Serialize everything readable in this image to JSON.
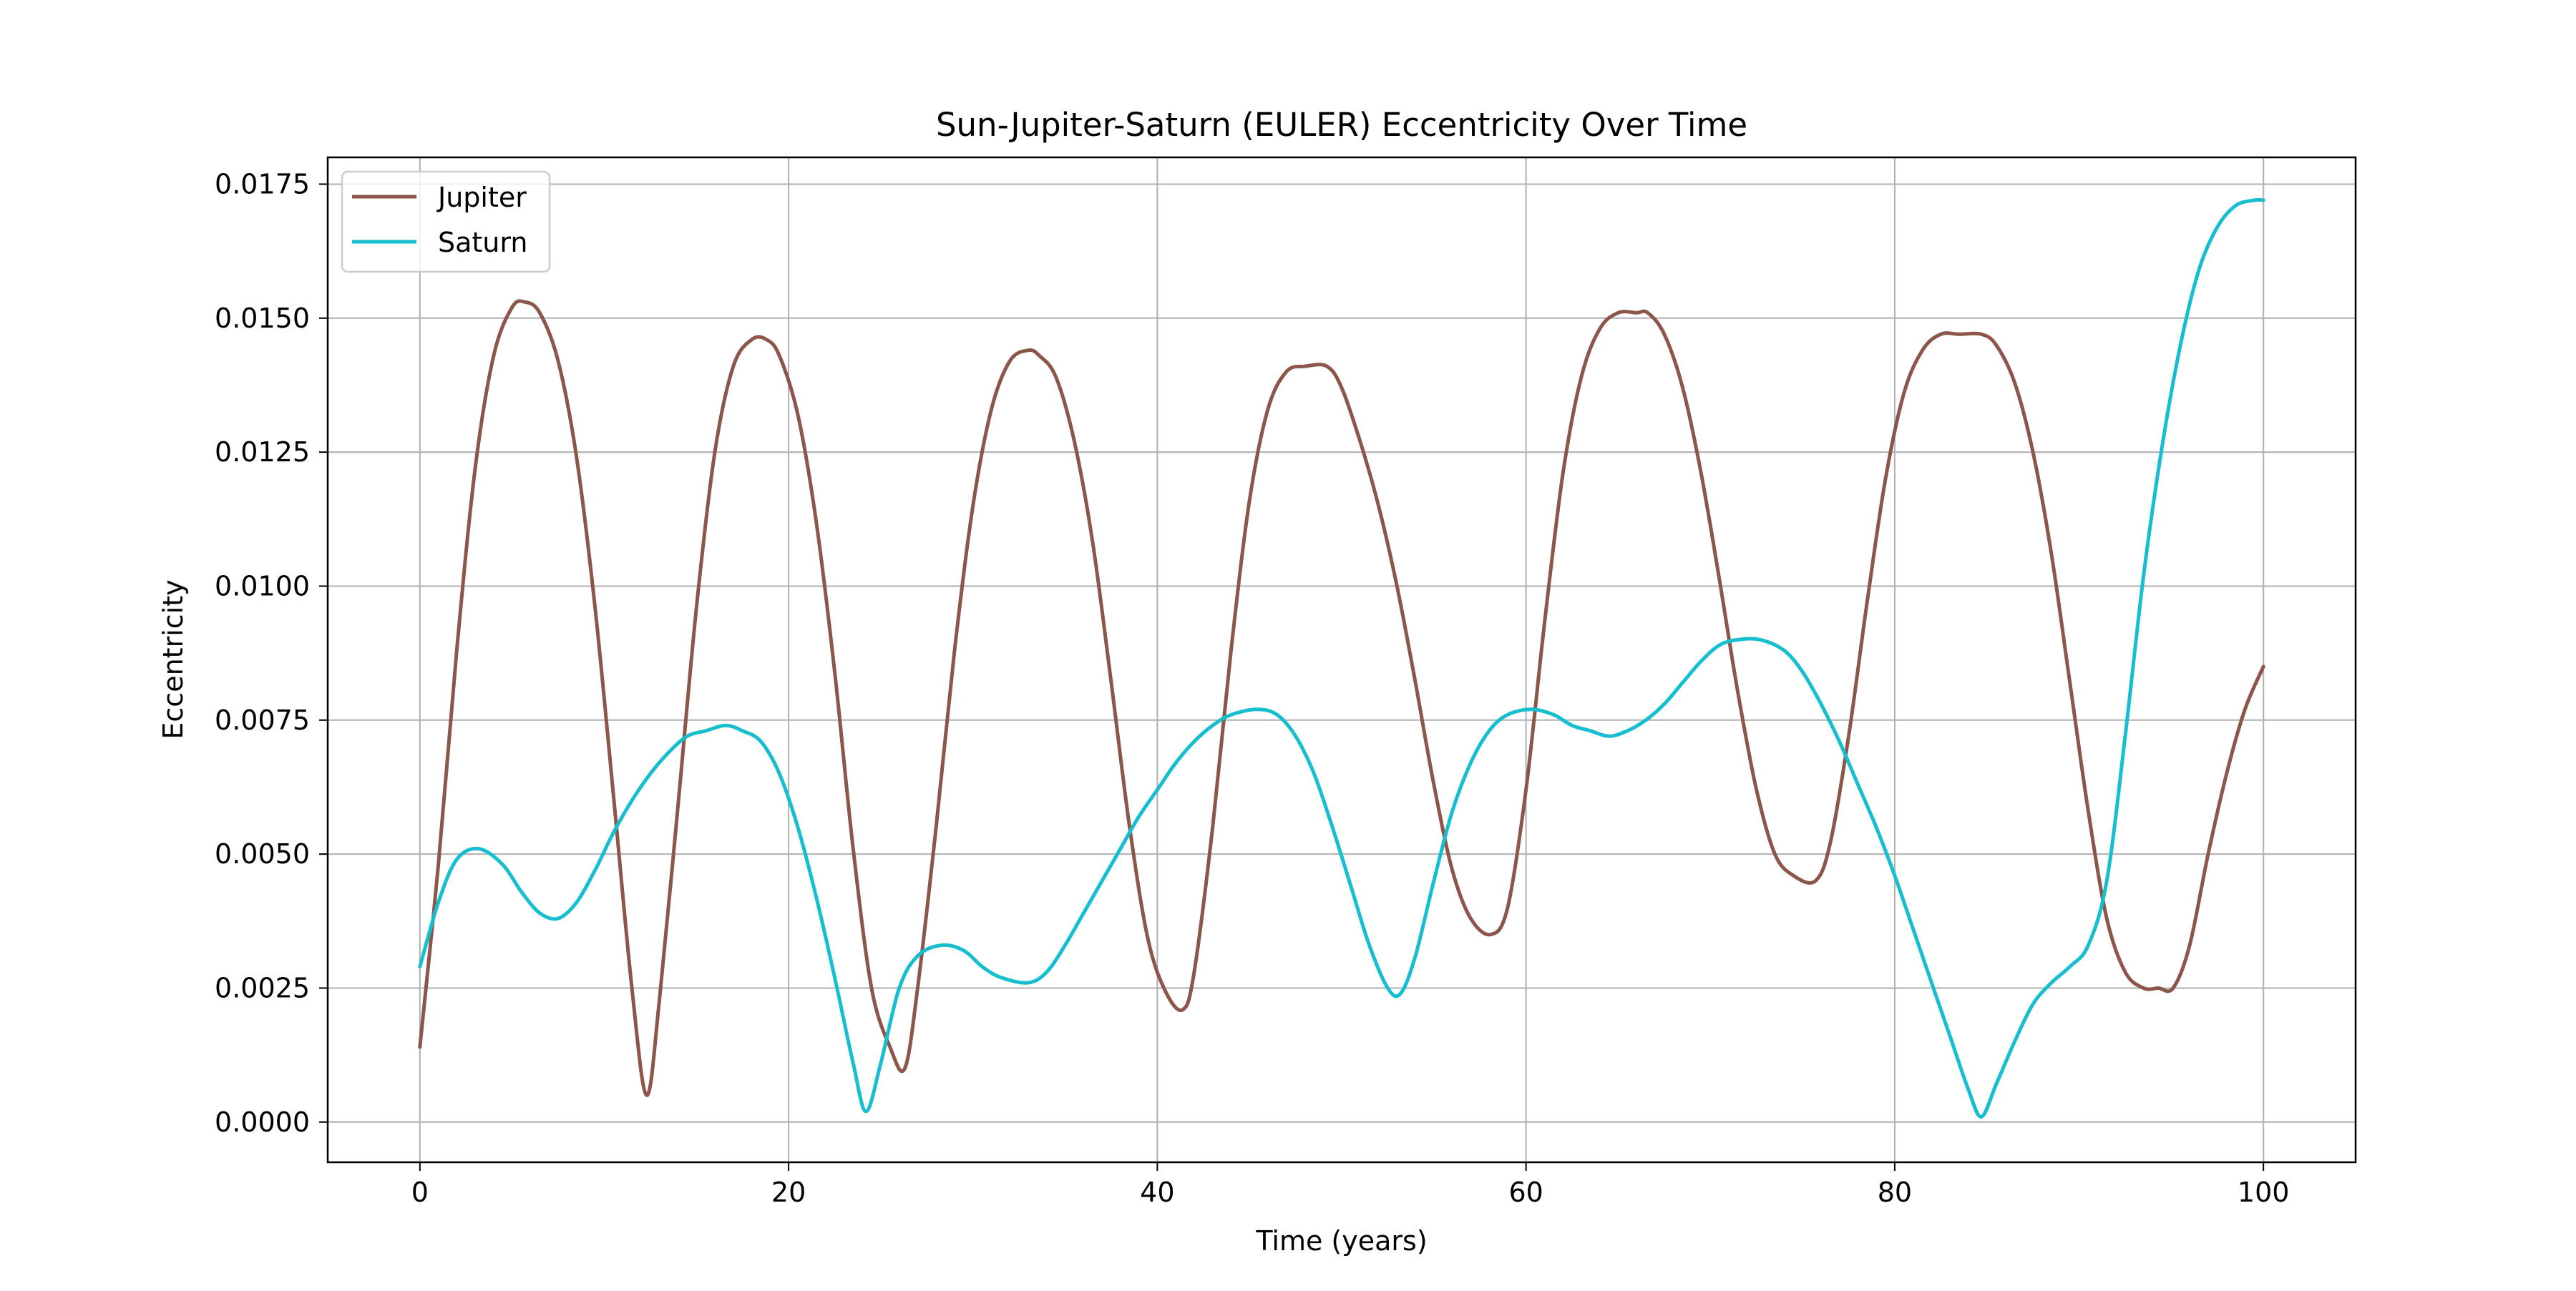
{
  "chart_data": {
    "type": "line",
    "title": "Sun-Jupiter-Saturn (EULER) Eccentricity Over Time",
    "xlabel": "Time (years)",
    "ylabel": "Eccentricity",
    "xlim": [
      -5,
      105
    ],
    "ylim": [
      -0.00075,
      0.018
    ],
    "xticks": [
      0,
      20,
      40,
      60,
      80,
      100
    ],
    "xtick_labels": [
      "0",
      "20",
      "40",
      "60",
      "80",
      "100"
    ],
    "yticks": [
      0.0,
      0.0025,
      0.005,
      0.0075,
      0.01,
      0.0125,
      0.015,
      0.0175
    ],
    "ytick_labels": [
      "0.0000",
      "0.0025",
      "0.0050",
      "0.0075",
      "0.0100",
      "0.0125",
      "0.0150",
      "0.0175"
    ],
    "grid": true,
    "legend_position": "top-left",
    "series": [
      {
        "name": "Jupiter",
        "color": "#8c564b",
        "x": [
          0,
          1,
          2,
          3,
          4,
          5,
          5.7,
          6.5,
          7.5,
          8.5,
          9.5,
          10.5,
          11.5,
          12.3,
          13,
          14,
          15,
          16,
          17,
          18,
          18.8,
          19.5,
          20.5,
          21.5,
          22.5,
          23.5,
          24.5,
          25.5,
          26.3,
          27,
          28,
          29,
          30,
          31,
          32,
          33,
          33.6,
          34.5,
          35.5,
          36.5,
          37.5,
          38.5,
          39.5,
          40.5,
          41.4,
          42,
          43,
          44,
          45,
          46,
          47,
          48,
          49.2,
          50,
          51,
          52,
          53,
          54,
          55,
          56,
          57,
          58.1,
          59,
          60,
          61,
          62,
          63,
          64,
          65,
          66,
          66.6,
          67.5,
          68.5,
          69.5,
          70.5,
          71.5,
          72.5,
          73.5,
          74.5,
          75.7,
          76.5,
          77.5,
          78.5,
          79.5,
          80.5,
          81.5,
          82.5,
          83.5,
          84.7,
          85.5,
          86.5,
          87.5,
          88.5,
          89.5,
          90.5,
          91.5,
          92.5,
          93.5,
          94.3,
          95.1,
          96,
          97,
          98,
          99,
          100
        ],
        "values": [
          0.0014,
          0.0048,
          0.0088,
          0.0122,
          0.0143,
          0.0152,
          0.0153,
          0.0151,
          0.0142,
          0.0124,
          0.0096,
          0.0061,
          0.0025,
          0.0005,
          0.0023,
          0.0059,
          0.0096,
          0.0125,
          0.0141,
          0.0146,
          0.0146,
          0.0143,
          0.0132,
          0.0112,
          0.0084,
          0.0051,
          0.0025,
          0.0014,
          0.001,
          0.0025,
          0.0055,
          0.0088,
          0.0115,
          0.0133,
          0.0142,
          0.0144,
          0.0143,
          0.0139,
          0.0127,
          0.0108,
          0.0082,
          0.0055,
          0.0034,
          0.0024,
          0.0021,
          0.0028,
          0.0055,
          0.0088,
          0.0116,
          0.0133,
          0.014,
          0.0141,
          0.0141,
          0.0137,
          0.0127,
          0.0115,
          0.01,
          0.0082,
          0.0063,
          0.0047,
          0.0038,
          0.0035,
          0.004,
          0.0062,
          0.0093,
          0.0121,
          0.0139,
          0.0148,
          0.0151,
          0.0151,
          0.0151,
          0.0147,
          0.0137,
          0.0121,
          0.0101,
          0.008,
          0.0062,
          0.005,
          0.0046,
          0.0045,
          0.0052,
          0.0072,
          0.0097,
          0.012,
          0.0136,
          0.0144,
          0.0147,
          0.0147,
          0.0147,
          0.0145,
          0.0138,
          0.0125,
          0.0106,
          0.0082,
          0.0058,
          0.0038,
          0.0028,
          0.0025,
          0.0025,
          0.0025,
          0.0033,
          0.005,
          0.0065,
          0.0077,
          0.0085
        ]
      },
      {
        "name": "Saturn",
        "color": "#17becf",
        "x": [
          0,
          1,
          2,
          3.2,
          4.5,
          5.5,
          6.5,
          7.5,
          8.5,
          9.5,
          10.5,
          11.5,
          12.5,
          13.5,
          14.5,
          15.5,
          16.6,
          17.5,
          18.5,
          19.5,
          20.5,
          21.5,
          22.5,
          23.5,
          24.2,
          25,
          26,
          27,
          28.3,
          29.5,
          30.5,
          31.5,
          33,
          34,
          35,
          36,
          37,
          38,
          39,
          40,
          41,
          42,
          43,
          44,
          45.4,
          46.5,
          47.5,
          48.5,
          49.5,
          50.5,
          51.5,
          52.5,
          53.2,
          54,
          55,
          56,
          57,
          58,
          59,
          60.3,
          61.5,
          62.5,
          63.5,
          64.5,
          65.5,
          66.5,
          67.5,
          68.5,
          69.5,
          70.5,
          71.5,
          72.7,
          74,
          75,
          76,
          77,
          78,
          79,
          80,
          81,
          82,
          83,
          84,
          84.7,
          85.5,
          86.5,
          87.5,
          88.5,
          89.5,
          90.5,
          91.5,
          92.5,
          93.5,
          94.5,
          95.5,
          96.5,
          97.5,
          98.5,
          99.5,
          100
        ],
        "values": [
          0.0029,
          0.0041,
          0.0049,
          0.0051,
          0.0048,
          0.0043,
          0.0039,
          0.0038,
          0.0041,
          0.0047,
          0.0054,
          0.006,
          0.0065,
          0.0069,
          0.0072,
          0.0073,
          0.0074,
          0.0073,
          0.0071,
          0.0065,
          0.0055,
          0.0042,
          0.0027,
          0.0011,
          0.0002,
          0.0011,
          0.0025,
          0.0031,
          0.0033,
          0.0032,
          0.0029,
          0.0027,
          0.0026,
          0.0028,
          0.0033,
          0.0039,
          0.0045,
          0.0051,
          0.0057,
          0.0062,
          0.0067,
          0.0071,
          0.0074,
          0.0076,
          0.0077,
          0.0076,
          0.0072,
          0.0065,
          0.0055,
          0.0044,
          0.0033,
          0.0025,
          0.0024,
          0.0031,
          0.0045,
          0.0058,
          0.0067,
          0.0073,
          0.0076,
          0.0077,
          0.0076,
          0.0074,
          0.0073,
          0.0072,
          0.0073,
          0.0075,
          0.0078,
          0.0082,
          0.0086,
          0.0089,
          0.009,
          0.009,
          0.0088,
          0.0084,
          0.0078,
          0.0071,
          0.0063,
          0.0055,
          0.0046,
          0.0036,
          0.0026,
          0.0016,
          0.0006,
          0.0001,
          0.0007,
          0.0015,
          0.0022,
          0.0026,
          0.0029,
          0.0033,
          0.0045,
          0.0072,
          0.0102,
          0.0126,
          0.0145,
          0.0159,
          0.0167,
          0.0171,
          0.0172,
          0.0172
        ]
      }
    ]
  }
}
